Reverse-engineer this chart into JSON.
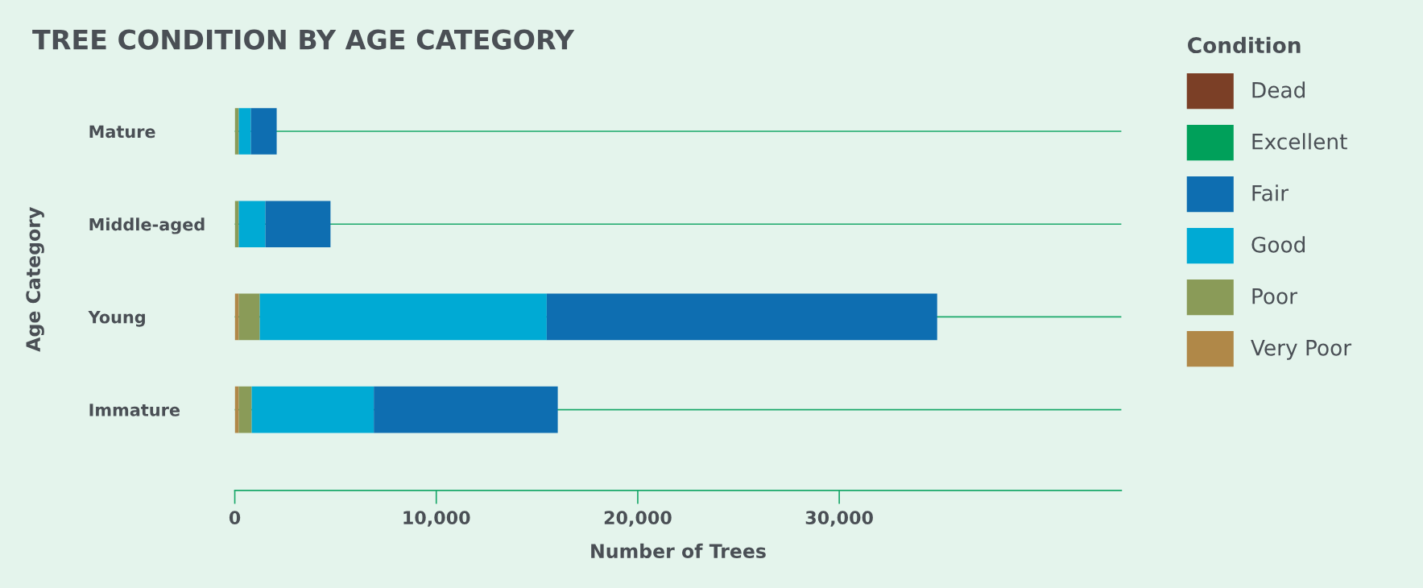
{
  "chart_data": {
    "type": "bar",
    "orientation": "horizontal",
    "stacked": true,
    "title": "TREE CONDITION BY AGE CATEGORY",
    "xlabel": "Number of Trees",
    "ylabel": "Age Category",
    "legend_title": "Condition",
    "categories": [
      "Mature",
      "Middle-aged",
      "Young",
      "Immature"
    ],
    "series": [
      {
        "name": "Very Poor",
        "color": "#b08848",
        "values": [
          0,
          0,
          200,
          200
        ]
      },
      {
        "name": "Poor",
        "color": "#8a9b58",
        "values": [
          200,
          200,
          1040,
          640
        ]
      },
      {
        "name": "Good",
        "color": "#00aad4",
        "values": [
          600,
          1320,
          14240,
          6060
        ]
      },
      {
        "name": "Fair",
        "color": "#0e6eb1",
        "values": [
          1280,
          3230,
          19380,
          9130
        ]
      },
      {
        "name": "Excellent",
        "color": "#00a05a",
        "values": [
          0,
          0,
          0,
          0
        ]
      },
      {
        "name": "Dead",
        "color": "#7b3f26",
        "values": [
          0,
          0,
          0,
          0
        ]
      }
    ],
    "xlim": [
      0,
      44000
    ],
    "xticks": [
      0,
      {
        "value": 10000,
        "label": "10,000"
      },
      {
        "value": 20000,
        "label": "20,000"
      },
      {
        "value": 30000,
        "label": "30,000"
      }
    ],
    "grid": "y",
    "legend": "right"
  }
}
